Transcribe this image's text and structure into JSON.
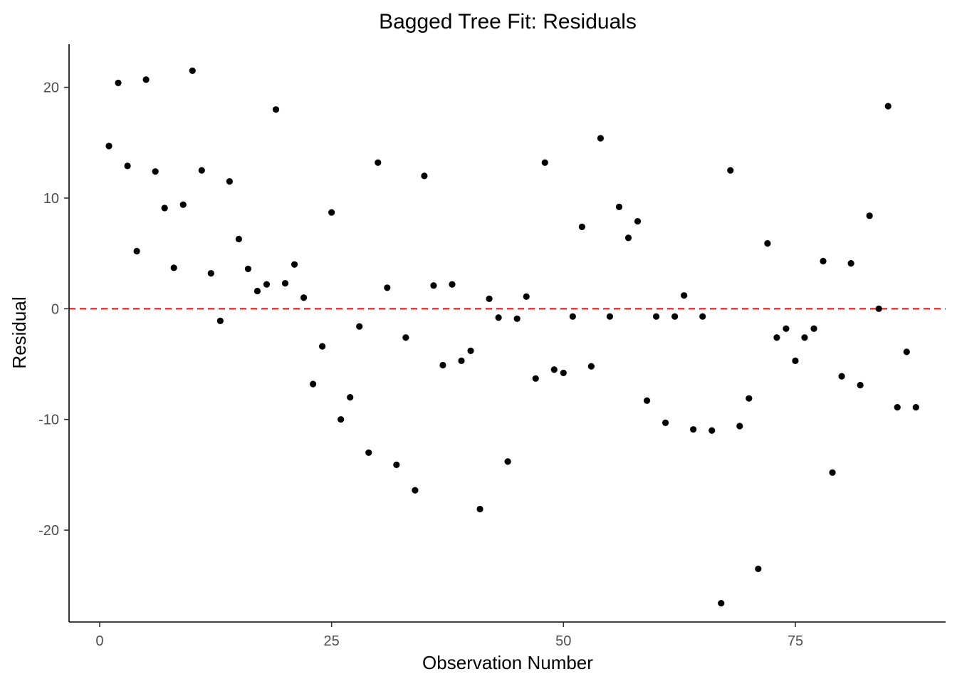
{
  "chart_data": {
    "type": "scatter",
    "title": "Bagged Tree Fit: Residuals",
    "xlabel": "Observation Number",
    "ylabel": "Residual",
    "xlim": [
      -3.3,
      91.2
    ],
    "ylim": [
      -28.3,
      23.9
    ],
    "xticks": [
      0,
      25,
      50,
      75
    ],
    "xtick_labels": [
      "0",
      "25",
      "50",
      "75"
    ],
    "yticks": [
      20,
      10,
      0,
      -10,
      -20
    ],
    "ytick_labels": [
      "20",
      "10",
      "0",
      "-10",
      "-20"
    ],
    "grid": false,
    "legend": "none",
    "reference_line": {
      "y": 0,
      "style": "dashed",
      "color": "#ff0000"
    },
    "point_color": "#000000",
    "x": [
      1,
      2,
      3,
      4,
      5,
      6,
      7,
      8,
      9,
      10,
      11,
      12,
      13,
      14,
      15,
      16,
      17,
      18,
      19,
      20,
      21,
      22,
      23,
      24,
      25,
      26,
      27,
      28,
      29,
      30,
      31,
      32,
      33,
      34,
      35,
      36,
      37,
      38,
      39,
      40,
      41,
      42,
      43,
      44,
      45,
      46,
      47,
      48,
      49,
      50,
      51,
      52,
      53,
      54,
      55,
      56,
      57,
      58,
      59,
      60,
      61,
      62,
      63,
      64,
      65,
      66,
      67,
      68,
      69,
      70,
      71,
      72,
      73,
      74,
      75,
      76,
      77,
      78,
      79,
      80,
      81,
      82,
      83,
      84,
      85,
      86,
      87,
      88
    ],
    "y": [
      14.7,
      20.4,
      12.9,
      5.2,
      20.7,
      12.4,
      9.1,
      3.7,
      9.4,
      21.5,
      12.5,
      3.2,
      -1.1,
      11.5,
      6.3,
      3.6,
      1.6,
      2.2,
      18.0,
      2.3,
      4.0,
      1.0,
      -6.8,
      -3.4,
      8.7,
      -10.0,
      -8.0,
      -1.6,
      -13.0,
      13.2,
      1.9,
      -14.1,
      -2.6,
      -16.4,
      12.0,
      2.1,
      -5.1,
      2.2,
      -4.7,
      -3.8,
      -18.1,
      0.9,
      -0.8,
      -13.8,
      -0.9,
      1.1,
      -6.3,
      13.2,
      -5.5,
      -5.8,
      -0.7,
      7.4,
      -5.2,
      15.4,
      -0.7,
      9.2,
      6.4,
      7.9,
      -8.3,
      -0.7,
      -10.3,
      -0.7,
      1.2,
      -10.9,
      -0.7,
      -11.0,
      -26.6,
      12.5,
      -10.6,
      -8.1,
      -23.5,
      5.9,
      -2.6,
      -1.8,
      -4.7,
      -2.6,
      -1.8,
      4.3,
      -14.8,
      -6.1,
      4.1,
      -6.9,
      8.4,
      0.0,
      18.3,
      -8.9,
      -3.9,
      -8.9
    ]
  }
}
